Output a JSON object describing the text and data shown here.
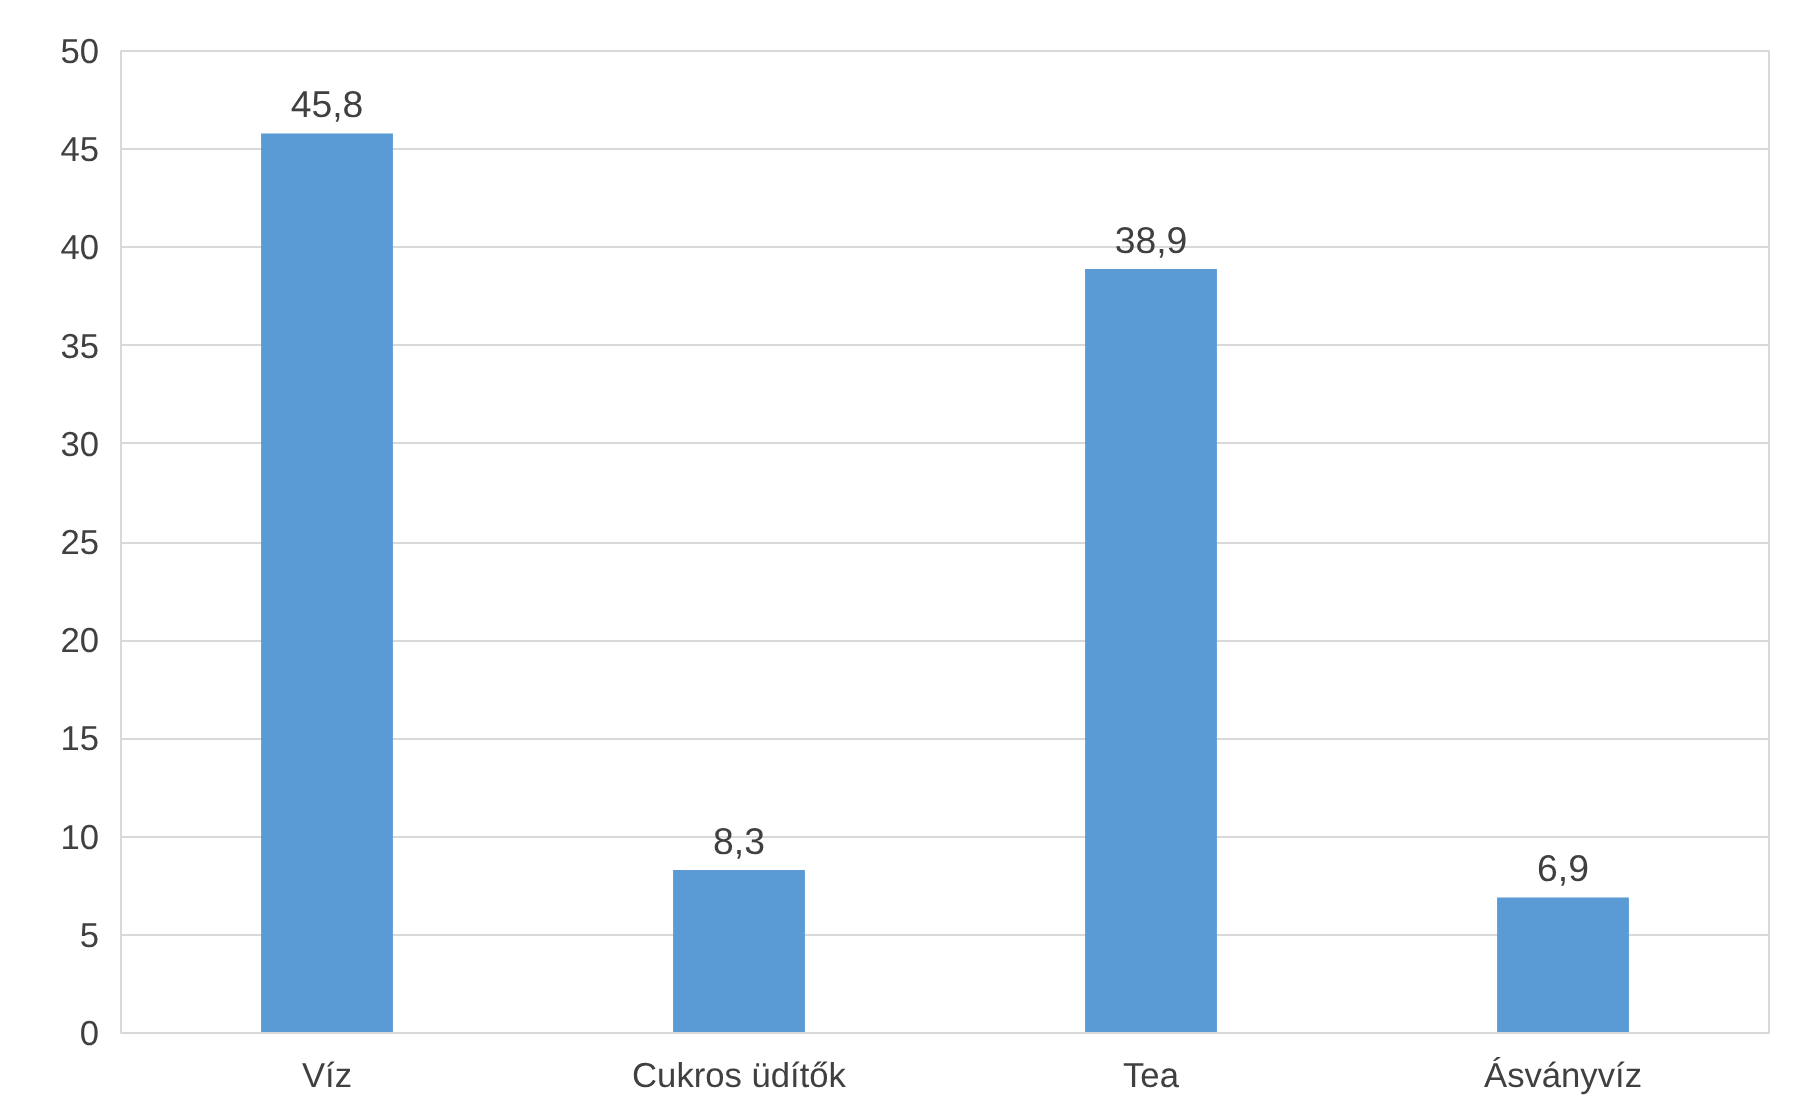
{
  "chart_data": {
    "type": "bar",
    "categories": [
      "Víz",
      "Cukros üdítők",
      "Tea",
      "Ásványvíz"
    ],
    "values": [
      45.8,
      8.3,
      38.9,
      6.9
    ],
    "value_labels": [
      "45,8",
      "8,3",
      "38,9",
      "6,9"
    ],
    "color": "#5b9bd5",
    "ylim": [
      0,
      50
    ],
    "yticks": [
      0,
      5,
      10,
      15,
      20,
      25,
      30,
      35,
      40,
      45,
      50
    ],
    "grid": "y"
  }
}
